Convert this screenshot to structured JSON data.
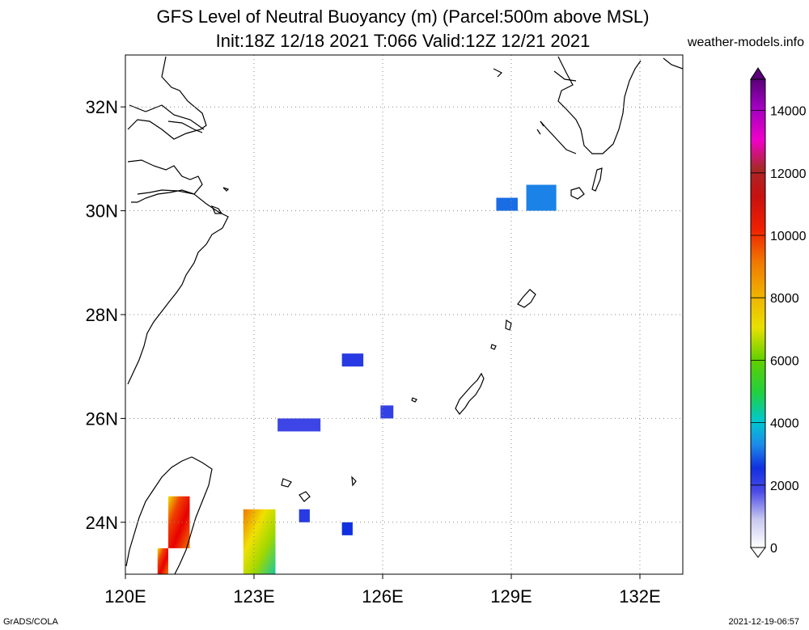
{
  "title": {
    "line1": "GFS Level of Neutral Buoyancy (m) (Parcel:500m above MSL)",
    "line2": "Init:18Z 12/18 2021 T:066 Valid:12Z 12/21 2021"
  },
  "site": "weather-models.info",
  "footer": {
    "left": "GrADS/COLA",
    "right": "2021-12-19-06:57"
  },
  "map": {
    "lon_range": [
      120,
      133
    ],
    "lat_range": [
      23,
      33
    ],
    "lat_ticks": [
      {
        "value": 24,
        "label": "24N"
      },
      {
        "value": 26,
        "label": "26N"
      },
      {
        "value": 28,
        "label": "28N"
      },
      {
        "value": 30,
        "label": "30N"
      },
      {
        "value": 32,
        "label": "32N"
      }
    ],
    "lon_ticks": [
      {
        "value": 120,
        "label": "120E"
      },
      {
        "value": 123,
        "label": "123E"
      },
      {
        "value": 126,
        "label": "126E"
      },
      {
        "value": 129,
        "label": "129E"
      },
      {
        "value": 132,
        "label": "132E"
      }
    ],
    "grid": "dotted"
  },
  "colorbar": {
    "min": 0,
    "max": 15000,
    "labels": [
      "0",
      "2000",
      "4000",
      "6000",
      "8000",
      "10000",
      "12000",
      "14000"
    ],
    "colors": {
      "lavender": "#d8d8f4",
      "blue": "#1f2fe0",
      "cyan": "#00c8d0",
      "green": "#18c818",
      "yellow": "#f0e000",
      "orange": "#f08000",
      "red": "#e80000",
      "darkred": "#a81818",
      "magenta": "#f000c8",
      "purple": "#5a0078"
    }
  },
  "buoyancy_cells": [
    {
      "name": "cell-30n-129e",
      "lon": [
        128.65,
        129.15
      ],
      "lat": [
        30.0,
        30.25
      ],
      "value_m": 2300
    },
    {
      "name": "cell-30n-129-5e",
      "lon": [
        129.35,
        130.05
      ],
      "lat": [
        30.0,
        30.5
      ],
      "value_m": 2500
    },
    {
      "name": "cell-27n-125e",
      "lon": [
        125.05,
        125.55
      ],
      "lat": [
        27.0,
        27.25
      ],
      "value_m": 1500
    },
    {
      "name": "cell-26n-126e",
      "lon": [
        125.95,
        126.25
      ],
      "lat": [
        26.0,
        26.25
      ],
      "value_m": 1400
    },
    {
      "name": "cell-26n-124e",
      "lon": [
        123.55,
        124.55
      ],
      "lat": [
        25.75,
        26.0
      ],
      "value_m": 1300
    },
    {
      "name": "cell-24n-124e",
      "lon": [
        124.05,
        124.3
      ],
      "lat": [
        24.0,
        24.25
      ],
      "value_m": 1500
    },
    {
      "name": "cell-24n-125e",
      "lon": [
        125.05,
        125.3
      ],
      "lat": [
        23.75,
        24.0
      ],
      "value_m": 1700
    },
    {
      "name": "cell-taiwan-east",
      "lon": [
        121.0,
        121.5
      ],
      "lat": [
        23.5,
        24.5
      ],
      "value_m": 10000
    },
    {
      "name": "cell-taiwan-south",
      "lon": [
        120.75,
        121.0
      ],
      "lat": [
        23.0,
        23.5
      ],
      "value_m": 9500
    },
    {
      "name": "cell-yaeyama",
      "lon": [
        122.75,
        123.5
      ],
      "lat": [
        23.0,
        24.25
      ],
      "value_m": 7000
    }
  ]
}
